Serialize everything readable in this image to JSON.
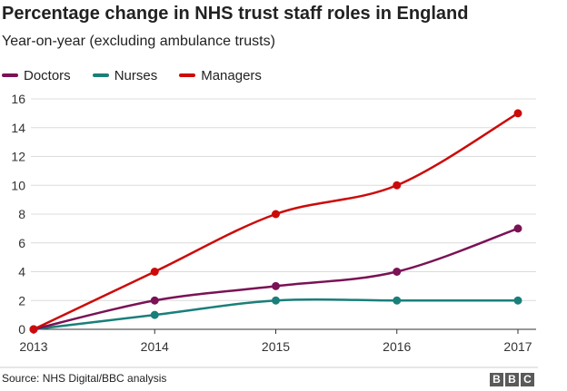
{
  "header": {
    "title": "Percentage change in NHS trust staff roles in England",
    "subtitle": "Year-on-year (excluding ambulance trusts)"
  },
  "footer": {
    "source": "Source: NHS Digital/BBC analysis",
    "logo_letters": [
      "B",
      "B",
      "C"
    ]
  },
  "chart_data": {
    "type": "line",
    "title": "Percentage change in NHS trust staff roles in England",
    "subtitle": "Year-on-year (excluding ambulance trusts)",
    "x": [
      2013,
      2014,
      2015,
      2016,
      2017
    ],
    "xlabels": [
      "2013",
      "2014",
      "2015",
      "2016",
      "2017"
    ],
    "ylim": [
      0,
      16
    ],
    "yticks": [
      0,
      2,
      4,
      6,
      8,
      10,
      12,
      14,
      16
    ],
    "grid": "horizontal",
    "legend_position": "top-left",
    "series": [
      {
        "name": "Doctors",
        "color": "#7a1255",
        "values": [
          0,
          2,
          3,
          4,
          7
        ]
      },
      {
        "name": "Nurses",
        "color": "#1a7f7a",
        "values": [
          0,
          1,
          2,
          2,
          2
        ]
      },
      {
        "name": "Managers",
        "color": "#cc0a0a",
        "values": [
          0,
          4,
          8,
          10,
          15
        ]
      }
    ]
  }
}
